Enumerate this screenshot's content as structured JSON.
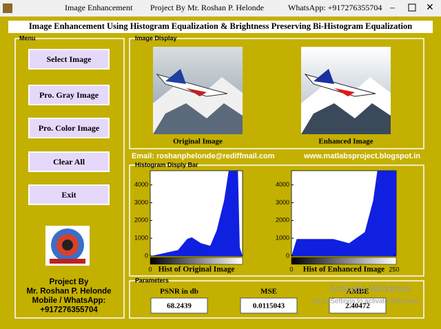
{
  "window": {
    "title": "Image Enhancement",
    "project": "Project By Mr. Roshan P. Helonde",
    "whatsapp": "WhatsApp: +917276355704"
  },
  "header": {
    "title": "Image Enhancement Using Histogram Equalization & Brightness Preserving Bi-Histogram Equalization"
  },
  "menu": {
    "title": "Menu",
    "buttons": [
      "Select Image",
      "Pro. Gray Image",
      "Pro. Color Image",
      "Clear All",
      "Exit"
    ],
    "credits": [
      "Project By",
      "Mr. Roshan P. Helonde",
      "Mobile / WhatsApp:",
      "+917276355704"
    ]
  },
  "display": {
    "title": "Image Display",
    "captions": [
      "Original Image",
      "Enhanced Image"
    ]
  },
  "contact": {
    "email": "Email: roshanphelonde@rediffmail.com",
    "web": "www.matlabsproject.blogspot.in"
  },
  "histograms": {
    "title": "Histogram Disply Bar",
    "plots": [
      {
        "caption": "Hist of Original Image",
        "ylim": [
          0,
          4800
        ],
        "xlim": [
          0,
          255
        ],
        "yticks": [
          0,
          1000,
          2000,
          3000,
          4000
        ],
        "xticks": [
          0
        ]
      },
      {
        "caption": "Hist of Enhanced Image",
        "ylim": [
          0,
          4800
        ],
        "xlim": [
          0,
          255
        ],
        "yticks": [
          0,
          1000,
          2000,
          3000,
          4000
        ],
        "xticks": [
          0,
          250
        ]
      }
    ]
  },
  "parameters": {
    "title": "Parameters",
    "labels": [
      "PSNR in db",
      "MSE",
      "AMBE"
    ],
    "values": [
      "68.2439",
      "0.0115043",
      "2.40472"
    ]
  },
  "watermark": [
    "Activate Windows",
    "Go to Settings to activate Windows."
  ]
}
